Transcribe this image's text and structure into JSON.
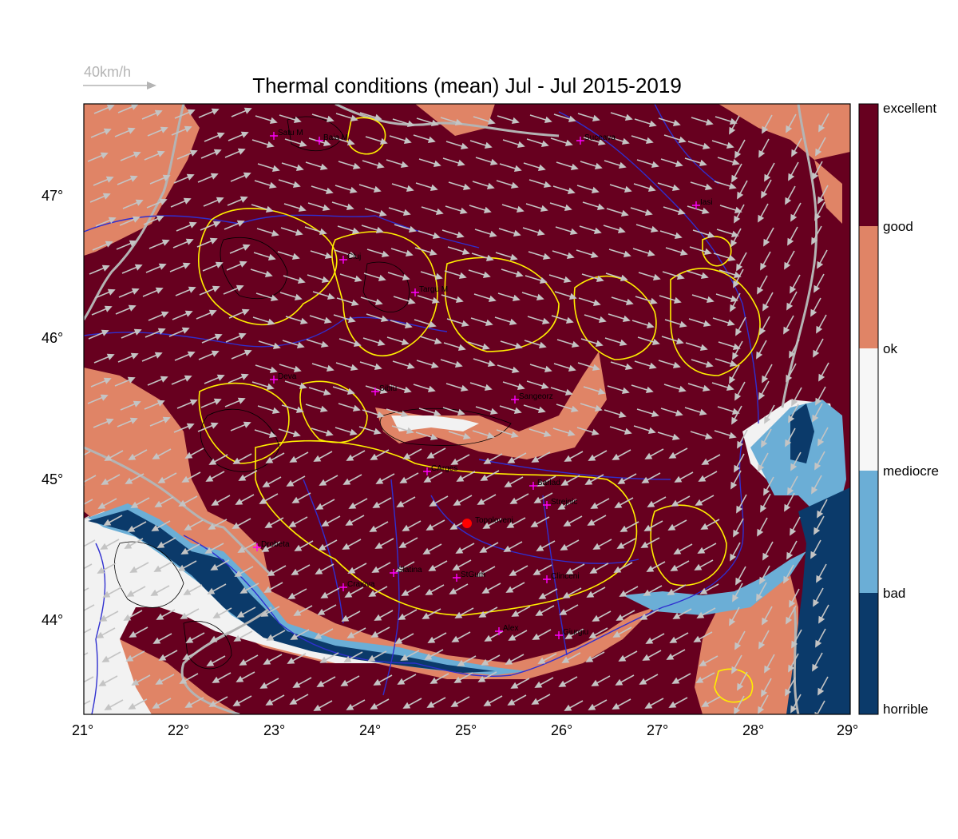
{
  "title": "Thermal conditions (mean) Jul - Jul  2015-2019",
  "wind_reference": {
    "label": "40km/h",
    "color": "#b4b4b4"
  },
  "axes": {
    "longitude_ticks": [
      "21°",
      "22°",
      "23°",
      "24°",
      "25°",
      "26°",
      "27°",
      "28°",
      "29°"
    ],
    "latitude_ticks": [
      "47°",
      "46°",
      "45°",
      "44°"
    ],
    "lon_range": [
      21,
      29
    ],
    "lat_range": [
      43.35,
      47.65
    ]
  },
  "colorbar": {
    "labels": [
      "excellent",
      "good",
      "ok",
      "mediocre",
      "bad",
      "horrible"
    ],
    "colors": [
      "#67001f",
      "#e08466",
      "#f7f7f7",
      "#6baed6",
      "#0b3a6a"
    ]
  },
  "selected_location": {
    "name": "Topoloveni",
    "color": "#ff0000"
  },
  "cities": [
    {
      "name": "Satu M"
    },
    {
      "name": "Baia M"
    },
    {
      "name": "Suceava"
    },
    {
      "name": "Iasi"
    },
    {
      "name": "Cluj"
    },
    {
      "name": "Targu M"
    },
    {
      "name": "Deva"
    },
    {
      "name": "Sibiu"
    },
    {
      "name": "Sangeorz"
    },
    {
      "name": "CArges"
    },
    {
      "name": "Barlad"
    },
    {
      "name": "Strejnic"
    },
    {
      "name": "Drobeta"
    },
    {
      "name": "Slatina"
    },
    {
      "name": "StGum"
    },
    {
      "name": "Clinceni"
    },
    {
      "name": "Craiova"
    },
    {
      "name": "Alex"
    },
    {
      "name": "Giurgiu"
    }
  ]
}
